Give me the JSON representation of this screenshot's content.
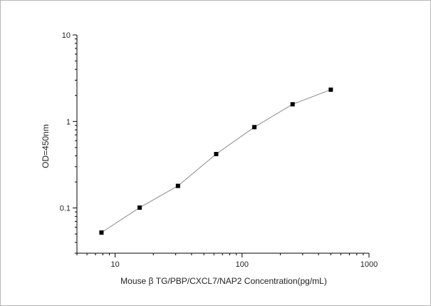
{
  "chart_data": {
    "type": "scatter",
    "title": "",
    "xlabel": "Mouse β TG/PBP/CXCL7/NAP2 Concentration(pg/mL)",
    "ylabel": "OD=450nm",
    "x_scale": "log",
    "y_scale": "log",
    "xlim": [
      5,
      1000
    ],
    "ylim": [
      0.03,
      10
    ],
    "x_ticks": [
      10,
      100,
      1000
    ],
    "x_tick_labels": [
      "10",
      "100",
      "1000"
    ],
    "y_ticks": [
      0.1,
      1,
      10
    ],
    "y_tick_labels": [
      "0.1",
      "1",
      "10"
    ],
    "grid": false,
    "series": [
      {
        "x": [
          7.8,
          15.6,
          31.25,
          62.5,
          125,
          250,
          500
        ],
        "y": [
          0.052,
          0.101,
          0.18,
          0.42,
          0.86,
          1.58,
          2.33
        ],
        "marker": "square",
        "line": true,
        "marker_color": "#000000",
        "line_color": "#8a8a8a"
      }
    ]
  }
}
